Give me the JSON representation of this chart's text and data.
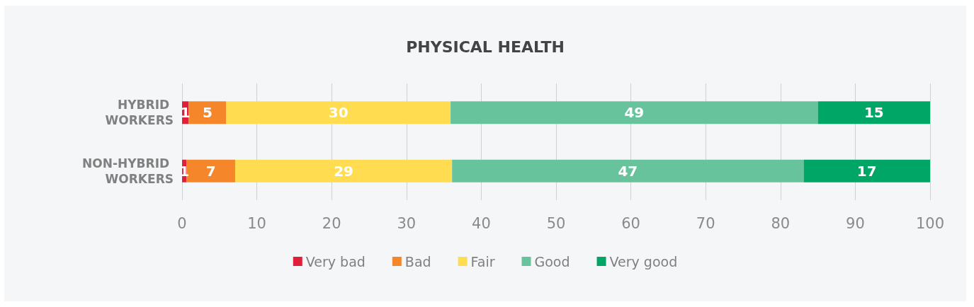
{
  "chart_data": {
    "type": "bar",
    "orientation": "horizontal",
    "stacked": true,
    "title": "PHYSICAL HEALTH",
    "categories": [
      "HYBRID WORKERS",
      "NON-HYBRID WORKERS"
    ],
    "series": [
      {
        "name": "Very bad",
        "color": "#e0203a",
        "values": [
          0.9,
          0.6
        ],
        "value_labels": [
          "1",
          "1"
        ]
      },
      {
        "name": "Bad",
        "color": "#f5862a",
        "values": [
          5.0,
          6.5
        ],
        "value_labels": [
          "5",
          "7"
        ]
      },
      {
        "name": "Fair",
        "color": "#ffdc50",
        "values": [
          30.0,
          29.0
        ],
        "value_labels": [
          "30",
          "29"
        ]
      },
      {
        "name": "Good",
        "color": "#66c39b",
        "values": [
          49.1,
          47.0
        ],
        "value_labels": [
          "49",
          "47"
        ]
      },
      {
        "name": "Very good",
        "color": "#00a666",
        "values": [
          15.0,
          16.9
        ],
        "value_labels": [
          "15",
          "17"
        ]
      }
    ],
    "xlim": [
      0,
      100
    ],
    "xticks": [
      0,
      10,
      20,
      30,
      40,
      50,
      60,
      70,
      80,
      90,
      100
    ],
    "grid": "x",
    "legend": "bottom"
  }
}
